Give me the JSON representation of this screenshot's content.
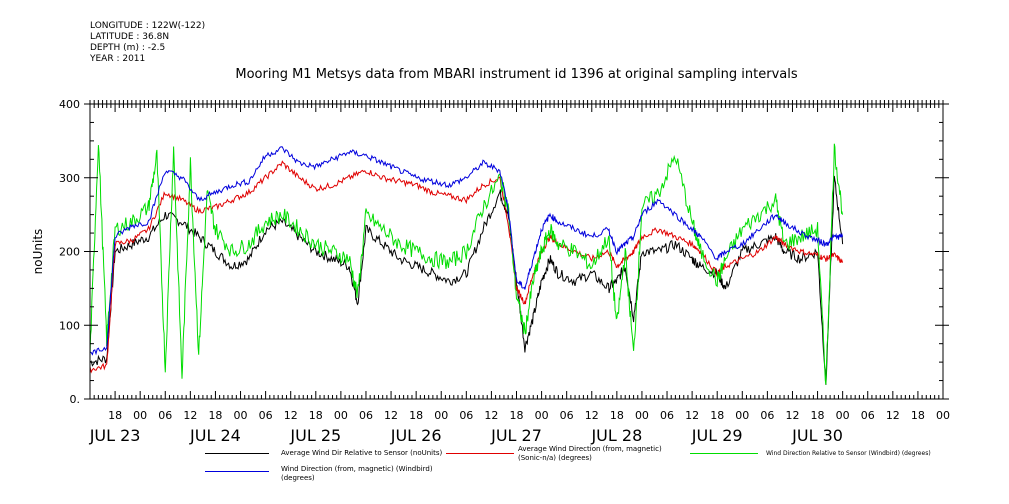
{
  "header": {
    "meta_lines": [
      "LONGITUDE : 122W(-122)",
      "LATITUDE : 36.8N",
      "DEPTH (m) : -2.5",
      "YEAR : 2011"
    ],
    "title": "Mooring M1 Metsys data from MBARI instrument id 1396 at original sampling intervals"
  },
  "chart_data": {
    "type": "line",
    "ylabel": "noUnits",
    "ylim": [
      0,
      400
    ],
    "y_ticks": [
      0,
      100,
      200,
      300,
      400
    ],
    "y_tick_labels": [
      "0.",
      "100",
      "200",
      "300",
      "400"
    ],
    "x_range_hours": [
      0,
      204
    ],
    "x_ticks": [
      {
        "hour": 6,
        "label": "18"
      },
      {
        "hour": 12,
        "label": "00"
      },
      {
        "hour": 18,
        "label": "06"
      },
      {
        "hour": 24,
        "label": "12"
      },
      {
        "hour": 30,
        "label": "18"
      },
      {
        "hour": 36,
        "label": "00"
      },
      {
        "hour": 42,
        "label": "06"
      },
      {
        "hour": 48,
        "label": "12"
      },
      {
        "hour": 54,
        "label": "18"
      },
      {
        "hour": 60,
        "label": "00"
      },
      {
        "hour": 66,
        "label": "06"
      },
      {
        "hour": 72,
        "label": "12"
      },
      {
        "hour": 78,
        "label": "18"
      },
      {
        "hour": 84,
        "label": "00"
      },
      {
        "hour": 90,
        "label": "06"
      },
      {
        "hour": 96,
        "label": "12"
      },
      {
        "hour": 102,
        "label": "18"
      },
      {
        "hour": 108,
        "label": "00"
      },
      {
        "hour": 114,
        "label": "06"
      },
      {
        "hour": 120,
        "label": "12"
      },
      {
        "hour": 126,
        "label": "18"
      },
      {
        "hour": 132,
        "label": "00"
      },
      {
        "hour": 138,
        "label": "06"
      },
      {
        "hour": 144,
        "label": "12"
      },
      {
        "hour": 150,
        "label": "18"
      },
      {
        "hour": 156,
        "label": "00"
      },
      {
        "hour": 162,
        "label": "06"
      },
      {
        "hour": 168,
        "label": "12"
      },
      {
        "hour": 174,
        "label": "18"
      },
      {
        "hour": 180,
        "label": "00"
      },
      {
        "hour": 186,
        "label": "06"
      },
      {
        "hour": 192,
        "label": "12"
      },
      {
        "hour": 198,
        "label": "18"
      },
      {
        "hour": 204,
        "label": "00"
      }
    ],
    "day_labels": [
      {
        "hour": 6,
        "label": "JUL 23"
      },
      {
        "hour": 30,
        "label": "JUL 24"
      },
      {
        "hour": 54,
        "label": "JUL 25"
      },
      {
        "hour": 78,
        "label": "JUL 26"
      },
      {
        "hour": 102,
        "label": "JUL 27"
      },
      {
        "hour": 126,
        "label": "JUL 28"
      },
      {
        "hour": 150,
        "label": "JUL 29"
      },
      {
        "hour": 174,
        "label": "JUL 30"
      }
    ],
    "grid": false,
    "legend_placement": "bottom",
    "series": [
      {
        "name": "Average Wind Dir Relative to Sensor (noUnits)",
        "color": "#000000",
        "x": [
          0,
          4,
          6,
          10,
          14,
          18,
          22,
          26,
          30,
          34,
          38,
          42,
          46,
          50,
          54,
          58,
          62,
          64,
          66,
          70,
          74,
          78,
          82,
          86,
          90,
          94,
          98,
          100,
          102,
          104,
          106,
          108,
          110,
          112,
          116,
          120,
          124,
          126,
          128,
          130,
          132,
          136,
          140,
          144,
          146,
          150,
          152,
          156,
          160,
          164,
          166,
          170,
          174,
          176,
          178,
          180
        ],
        "y": [
          50,
          55,
          200,
          210,
          220,
          250,
          240,
          220,
          200,
          180,
          190,
          230,
          240,
          220,
          200,
          190,
          180,
          130,
          230,
          210,
          190,
          180,
          170,
          160,
          170,
          230,
          280,
          250,
          160,
          70,
          110,
          160,
          190,
          170,
          160,
          170,
          150,
          160,
          180,
          110,
          200,
          200,
          210,
          190,
          180,
          170,
          150,
          200,
          210,
          220,
          200,
          190,
          200,
          20,
          300,
          210
        ]
      },
      {
        "name": "Average Wind Direction (from, magnetic) (Sonic-n/a) (degrees)",
        "color": "#e00000",
        "x": [
          0,
          4,
          6,
          10,
          14,
          18,
          22,
          26,
          30,
          34,
          38,
          42,
          46,
          50,
          54,
          58,
          62,
          66,
          70,
          74,
          78,
          82,
          86,
          90,
          94,
          98,
          100,
          102,
          104,
          106,
          108,
          110,
          112,
          116,
          120,
          124,
          126,
          128,
          130,
          132,
          136,
          140,
          144,
          146,
          150,
          152,
          156,
          160,
          164,
          166,
          170,
          174,
          176,
          178,
          180
        ],
        "y": [
          40,
          45,
          210,
          215,
          230,
          280,
          270,
          255,
          260,
          270,
          280,
          300,
          320,
          300,
          285,
          290,
          300,
          310,
          300,
          295,
          290,
          280,
          275,
          270,
          290,
          300,
          240,
          150,
          130,
          170,
          200,
          220,
          210,
          200,
          190,
          200,
          180,
          190,
          200,
          220,
          230,
          220,
          210,
          200,
          170,
          180,
          190,
          200,
          220,
          210,
          200,
          195,
          190,
          195,
          185
        ]
      },
      {
        "name": "Wind Direction Relative to Sensor (Windbird) (degrees)",
        "color": "#00dd00",
        "x": [
          0,
          2,
          4,
          6,
          10,
          14,
          16,
          18,
          20,
          22,
          24,
          26,
          28,
          30,
          34,
          38,
          42,
          46,
          50,
          54,
          58,
          62,
          64,
          66,
          70,
          74,
          78,
          82,
          86,
          90,
          94,
          98,
          100,
          102,
          104,
          106,
          108,
          110,
          112,
          116,
          120,
          124,
          126,
          128,
          130,
          132,
          136,
          140,
          144,
          146,
          150,
          152,
          156,
          160,
          164,
          166,
          170,
          174,
          176,
          178,
          180
        ],
        "y": [
          60,
          350,
          80,
          230,
          240,
          260,
          330,
          40,
          340,
          30,
          320,
          60,
          280,
          230,
          200,
          210,
          240,
          250,
          230,
          210,
          200,
          190,
          140,
          250,
          230,
          210,
          200,
          190,
          185,
          200,
          260,
          300,
          260,
          140,
          90,
          160,
          200,
          230,
          210,
          200,
          180,
          220,
          100,
          200,
          60,
          260,
          280,
          330,
          240,
          200,
          160,
          190,
          230,
          250,
          270,
          210,
          220,
          230,
          20,
          340,
          250
        ]
      },
      {
        "name": "Wind Direction (from, magnetic) (Windbird) (degrees)",
        "color": "#0000dd",
        "x": [
          0,
          4,
          6,
          10,
          14,
          18,
          22,
          26,
          30,
          34,
          38,
          42,
          46,
          50,
          54,
          58,
          62,
          66,
          70,
          74,
          78,
          82,
          86,
          90,
          94,
          98,
          100,
          102,
          104,
          106,
          108,
          110,
          112,
          116,
          120,
          124,
          126,
          128,
          130,
          132,
          136,
          140,
          144,
          146,
          150,
          152,
          156,
          160,
          164,
          166,
          170,
          174,
          176,
          178,
          180
        ],
        "y": [
          60,
          70,
          220,
          235,
          240,
          310,
          300,
          270,
          280,
          290,
          295,
          330,
          340,
          320,
          315,
          325,
          335,
          330,
          320,
          310,
          300,
          295,
          290,
          300,
          320,
          310,
          260,
          160,
          150,
          190,
          230,
          250,
          240,
          230,
          220,
          230,
          200,
          210,
          220,
          250,
          270,
          250,
          230,
          220,
          190,
          200,
          210,
          230,
          250,
          240,
          225,
          215,
          210,
          220,
          220
        ]
      }
    ]
  }
}
